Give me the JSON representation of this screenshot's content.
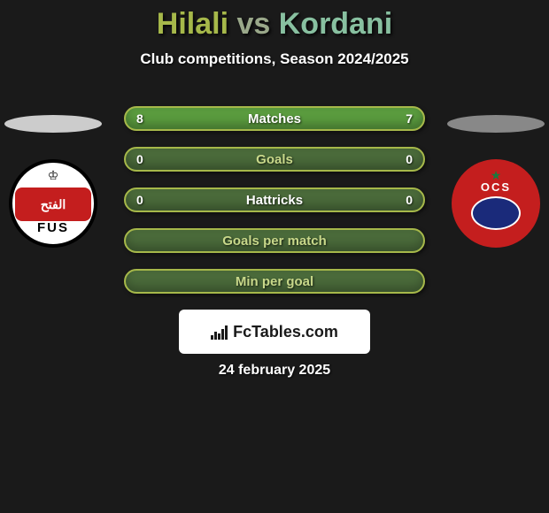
{
  "title": {
    "text": "Hilali vs Kordani",
    "p1_color": "#a6b84a",
    "vs_color": "#9aa88a",
    "p2_color": "#88c0a0"
  },
  "subtitle": "Club competitions, Season 2024/2025",
  "date": "24 february 2025",
  "brand": "FcTables.com",
  "background_color": "#1a1a1a",
  "text_color": "#ffffff",
  "brand_box_bg": "#ffffff",
  "brand_box_text": "#1a1a1a",
  "logos": {
    "left": {
      "disc_color": "#cccccc",
      "tag": "FUS",
      "band_text": "الفتح",
      "band_bg": "#c41e1e"
    },
    "right": {
      "disc_color": "#888888",
      "tag": "OCS",
      "bg": "#c41e1e",
      "ball": "#1a2a7a"
    }
  },
  "bars": [
    {
      "label": "Matches",
      "left": "8",
      "right": "7",
      "bg": "#5a9b3e",
      "border": "#a6b84a",
      "label_color": "#ffffff"
    },
    {
      "label": "Goals",
      "left": "0",
      "right": "0",
      "bg": "#4a6a3a",
      "border": "#a6b84a",
      "label_color": "#c8d88a"
    },
    {
      "label": "Hattricks",
      "left": "0",
      "right": "0",
      "bg": "#4a6a3a",
      "border": "#a6b84a",
      "label_color": "#ffffff"
    },
    {
      "label": "Goals per match",
      "left": "",
      "right": "",
      "bg": "#4a6a3a",
      "border": "#a6b84a",
      "label_color": "#c8d88a"
    },
    {
      "label": "Min per goal",
      "left": "",
      "right": "",
      "bg": "#4a6a3a",
      "border": "#a6b84a",
      "label_color": "#c8d88a"
    }
  ],
  "bar_style": {
    "height": 28,
    "radius": 14,
    "gap": 18,
    "fontsize": 15
  }
}
